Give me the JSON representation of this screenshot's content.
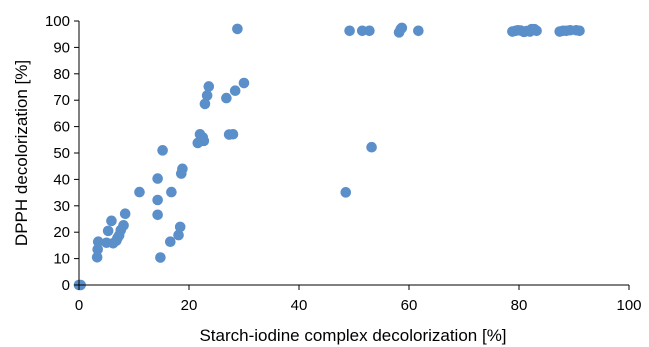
{
  "chart_data": {
    "type": "scatter",
    "title": "",
    "xlabel": "Starch-iodine complex decolorization [%]",
    "ylabel": "DPPH decolorization [%]",
    "xlim": [
      0,
      100
    ],
    "ylim": [
      0,
      100
    ],
    "x_ticks": [
      0,
      20,
      40,
      60,
      80,
      100
    ],
    "y_ticks": [
      0,
      10,
      20,
      30,
      40,
      50,
      60,
      70,
      80,
      90,
      100
    ],
    "grid": false,
    "legend": "none",
    "colors": {
      "marker": "#5b8fc9",
      "axis": "#000000"
    },
    "series": [
      {
        "points": [
          [
            0,
            0
          ],
          [
            0.3,
            0
          ],
          [
            3.3,
            10.5
          ],
          [
            3.4,
            13.5
          ],
          [
            3.5,
            16.4
          ],
          [
            5.0,
            16.0
          ],
          [
            5.3,
            20.5
          ],
          [
            5.9,
            24.3
          ],
          [
            6.2,
            15.8
          ],
          [
            6.8,
            16.8
          ],
          [
            7.0,
            17.8
          ],
          [
            7.3,
            18.8
          ],
          [
            7.6,
            20.8
          ],
          [
            8.1,
            22.6
          ],
          [
            8.4,
            27.0
          ],
          [
            11.0,
            35.2
          ],
          [
            14.3,
            40.3
          ],
          [
            14.3,
            32.2
          ],
          [
            14.3,
            26.6
          ],
          [
            14.8,
            10.4
          ],
          [
            15.2,
            51.0
          ],
          [
            16.6,
            16.4
          ],
          [
            16.8,
            35.2
          ],
          [
            18.1,
            18.9
          ],
          [
            18.4,
            22.0
          ],
          [
            18.6,
            42.2
          ],
          [
            18.8,
            44.0
          ],
          [
            21.6,
            53.8
          ],
          [
            22.0,
            57.1
          ],
          [
            22.5,
            55.9
          ],
          [
            22.7,
            54.6
          ],
          [
            22.9,
            68.6
          ],
          [
            23.3,
            71.8
          ],
          [
            23.6,
            75.2
          ],
          [
            26.8,
            70.8
          ],
          [
            27.3,
            57.0
          ],
          [
            28.0,
            57.1
          ],
          [
            28.4,
            73.6
          ],
          [
            28.8,
            97.0
          ],
          [
            30.0,
            76.5
          ],
          [
            48.5,
            35.1
          ],
          [
            49.2,
            96.3
          ],
          [
            51.5,
            96.3
          ],
          [
            52.8,
            96.3
          ],
          [
            53.2,
            52.2
          ],
          [
            58.2,
            95.7
          ],
          [
            58.5,
            96.9
          ],
          [
            58.7,
            97.4
          ],
          [
            61.7,
            96.3
          ],
          [
            78.8,
            96.0
          ],
          [
            79.4,
            96.3
          ],
          [
            79.8,
            96.5
          ],
          [
            80.3,
            96.4
          ],
          [
            80.9,
            95.9
          ],
          [
            81.4,
            96.2
          ],
          [
            82.0,
            96.0
          ],
          [
            82.3,
            96.9
          ],
          [
            82.8,
            96.9
          ],
          [
            83.2,
            96.3
          ],
          [
            87.4,
            96.0
          ],
          [
            88.0,
            96.3
          ],
          [
            88.6,
            96.3
          ],
          [
            89.3,
            96.5
          ],
          [
            90.4,
            96.5
          ],
          [
            91.0,
            96.3
          ]
        ]
      }
    ]
  }
}
